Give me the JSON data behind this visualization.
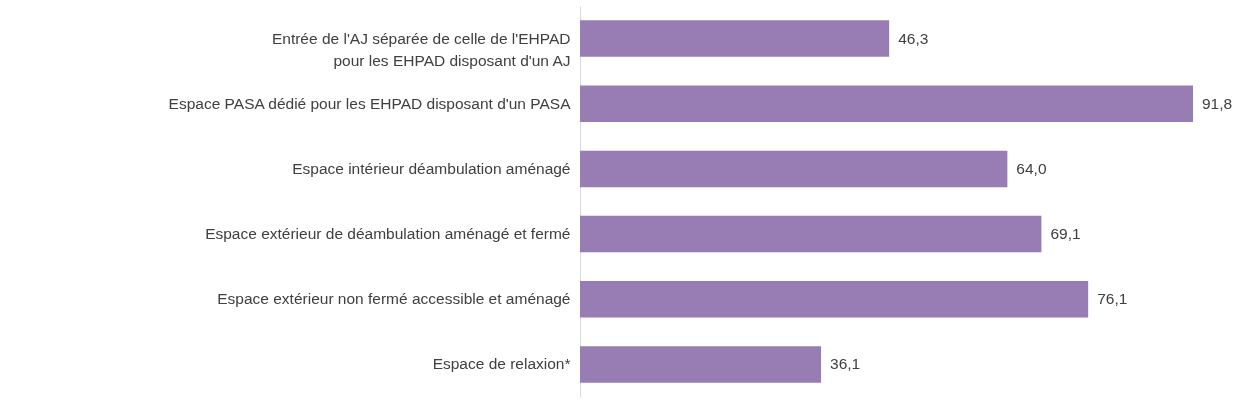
{
  "chart_data": {
    "type": "bar",
    "orientation": "horizontal",
    "categories": [
      "Entrée de l'AJ séparée de celle de l'EHPAD pour les EHPAD disposant d'un AJ",
      "Espace PASA dédié pour les EHPAD disposant d'un PASA",
      "Espace intérieur déambulation aménagé",
      "Espace extérieur de déambulation aménagé et fermé",
      "Espace extérieur non fermé accessible et aménagé",
      "Espace de relaxion*"
    ],
    "values": [
      46.3,
      91.8,
      64.0,
      69.1,
      76.1,
      36.1
    ],
    "value_labels": [
      "46,3",
      "91,8",
      "64,0",
      "69,1",
      "76,1",
      "36,1"
    ],
    "color": "#977db4"
  }
}
